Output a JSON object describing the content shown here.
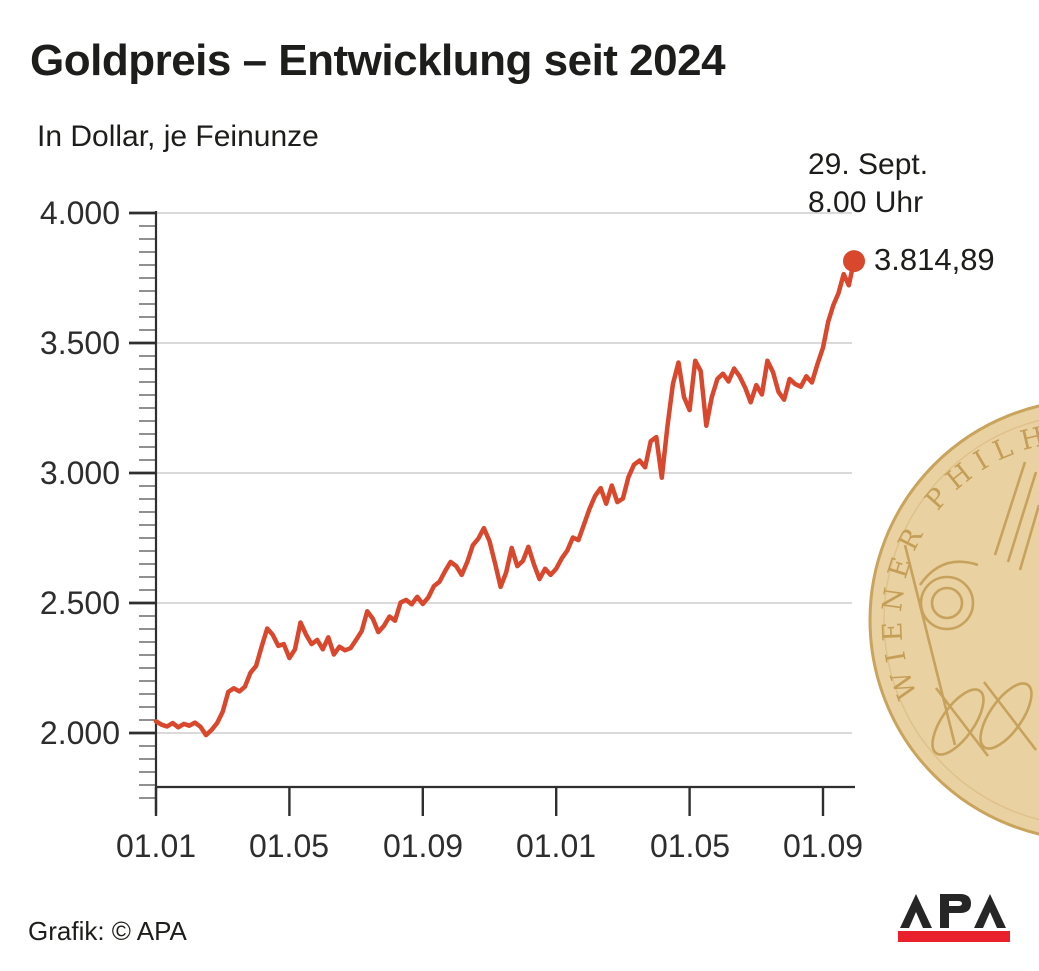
{
  "header": {
    "title": "Goldpreis – Entwicklung seit 2024",
    "subtitle": "In Dollar, je Feinunze"
  },
  "annotation": {
    "date_line1": "29. Sept.",
    "date_line2": "8.00 Uhr",
    "value_label": "3.814,89"
  },
  "footer": {
    "credit": "Grafik: © APA",
    "logo_text": "APA"
  },
  "coin": {
    "inscription": "WIENER PHILHAR"
  },
  "colors": {
    "line": "#d9472d",
    "marker": "#d9472d",
    "grid": "#dadada",
    "axis": "#2f2f2f",
    "minor_tick": "#6b6b6b",
    "text": "#1d1d1b",
    "logo_black": "#262626",
    "logo_red": "#e8212d",
    "coin_fill": "#e9d1a1",
    "coin_rim": "#c8a45c",
    "coin_engraving": "#c49e56"
  },
  "chart_data": {
    "type": "line",
    "title": "Goldpreis – Entwicklung seit 2024",
    "ylabel": "In Dollar, je Feinunze",
    "xlabel": "",
    "grid": "horizontal",
    "ylim": [
      1790,
      4000
    ],
    "y_axis": {
      "ticks": [
        {
          "value": 4000,
          "label": "4.000"
        },
        {
          "value": 3500,
          "label": "3.500"
        },
        {
          "value": 3000,
          "label": "3.000"
        },
        {
          "value": 2500,
          "label": "2.500"
        },
        {
          "value": 2000,
          "label": "2.000"
        }
      ],
      "minor_tick_step": 50
    },
    "x_axis": {
      "ticks": [
        {
          "m": 0,
          "label": "01.01"
        },
        {
          "m": 4,
          "label": "01.05"
        },
        {
          "m": 8,
          "label": "01.09"
        },
        {
          "m": 12,
          "label": "01.01"
        },
        {
          "m": 16,
          "label": "01.05"
        },
        {
          "m": 20,
          "label": "01.09"
        }
      ]
    },
    "end_point": {
      "m": 20.93,
      "value": 3814.89,
      "date": "29. Sept.",
      "time": "8.00 Uhr"
    },
    "end_month_fraction": 0.93,
    "series": [
      {
        "name": "Goldpreis in Dollar je Feinunze",
        "monthly": [
          {
            "month": "2024-01",
            "values": [
              2045,
              2032,
              2025,
              2038,
              2022,
              2035
            ]
          },
          {
            "month": "2024-02",
            "values": [
              2028,
              2040,
              2024,
              1992,
              2012,
              2038
            ]
          },
          {
            "month": "2024-03",
            "values": [
              2082,
              2158,
              2172,
              2160,
              2178,
              2232
            ]
          },
          {
            "month": "2024-04",
            "values": [
              2258,
              2332,
              2402,
              2378,
              2335,
              2342
            ]
          },
          {
            "month": "2024-05",
            "values": [
              2288,
              2322,
              2425,
              2378,
              2342,
              2358
            ]
          },
          {
            "month": "2024-06",
            "values": [
              2322,
              2368,
              2302,
              2332,
              2318,
              2326
            ]
          },
          {
            "month": "2024-07",
            "values": [
              2358,
              2392,
              2468,
              2440,
              2388,
              2412
            ]
          },
          {
            "month": "2024-08",
            "values": [
              2448,
              2432,
              2502,
              2512,
              2495,
              2524
            ]
          },
          {
            "month": "2024-09",
            "values": [
              2496,
              2522,
              2565,
              2582,
              2622,
              2658
            ]
          },
          {
            "month": "2024-10",
            "values": [
              2642,
              2608,
              2658,
              2722,
              2748,
              2788
            ]
          },
          {
            "month": "2024-11",
            "values": [
              2738,
              2652,
              2562,
              2618,
              2712,
              2642
            ]
          },
          {
            "month": "2024-12",
            "values": [
              2662,
              2716,
              2648,
              2592,
              2632,
              2608
            ]
          },
          {
            "month": "2025-01",
            "values": [
              2632,
              2672,
              2702,
              2752,
              2742,
              2802
            ]
          },
          {
            "month": "2025-02",
            "values": [
              2862,
              2912,
              2942,
              2882,
              2952,
              2888
            ]
          },
          {
            "month": "2025-03",
            "values": [
              2902,
              2985,
              3032,
              3048,
              3022,
              3122
            ]
          },
          {
            "month": "2025-04",
            "values": [
              3138,
              2982,
              3178,
              3342,
              3425,
              3292
            ]
          },
          {
            "month": "2025-05",
            "values": [
              3242,
              3432,
              3392,
              3182,
              3292,
              3362
            ]
          },
          {
            "month": "2025-06",
            "values": [
              3382,
              3352,
              3402,
              3372,
              3328,
              3272
            ]
          },
          {
            "month": "2025-07",
            "values": [
              3338,
              3302,
              3432,
              3388,
              3312,
              3282
            ]
          },
          {
            "month": "2025-08",
            "values": [
              3362,
              3342,
              3332,
              3372,
              3348,
              3418
            ]
          },
          {
            "month": "2025-09",
            "values": [
              3482,
              3582,
              3645,
              3692,
              3765,
              3722,
              3814.89
            ]
          }
        ]
      }
    ]
  }
}
